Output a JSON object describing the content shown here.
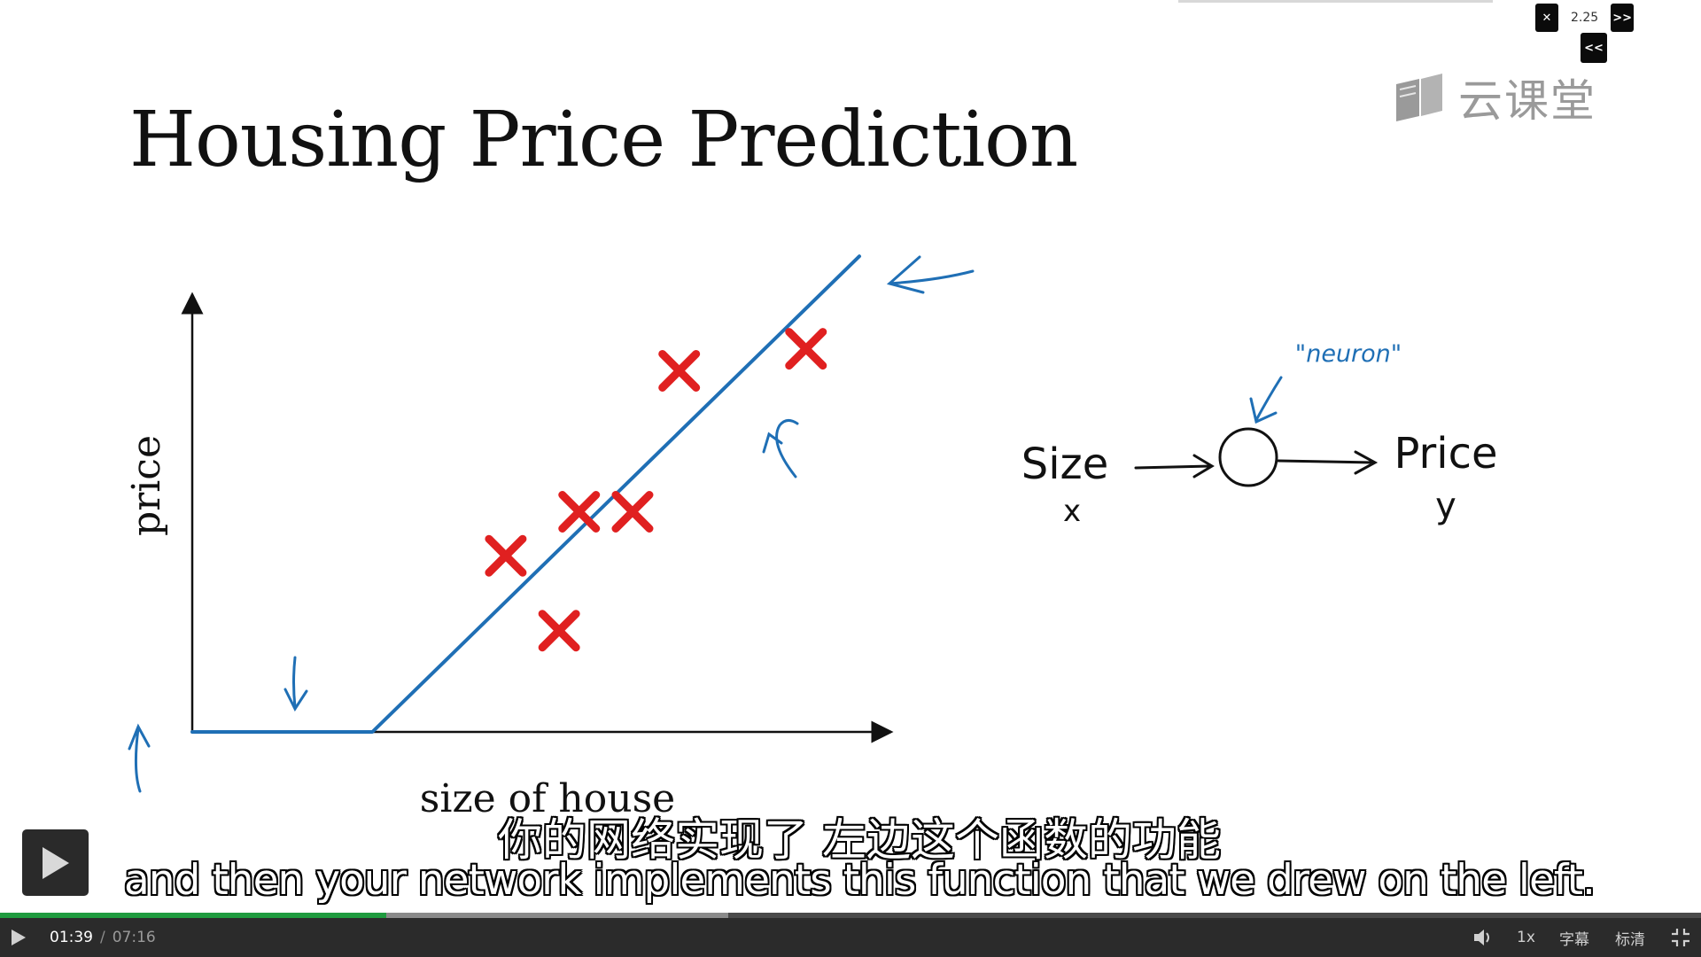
{
  "slide": {
    "title": "Housing Price Prediction"
  },
  "watermark": {
    "logo_icon": "book-logo-icon",
    "text": "云课堂"
  },
  "speed_control": {
    "close_label": "✕",
    "value": "2.25",
    "forward_label": ">>",
    "back_label": "<<"
  },
  "chart_data": {
    "type": "scatter",
    "title": "",
    "xlabel": "size of house",
    "ylabel": "price",
    "points": [
      {
        "x": 0.47,
        "y": 0.4
      },
      {
        "x": 0.55,
        "y": 0.23
      },
      {
        "x": 0.58,
        "y": 0.5
      },
      {
        "x": 0.66,
        "y": 0.5
      },
      {
        "x": 0.73,
        "y": 0.82
      },
      {
        "x": 0.92,
        "y": 0.87
      }
    ],
    "fit_line": [
      {
        "x": 0.0,
        "y": 0.0
      },
      {
        "x": 0.27,
        "y": 0.0
      },
      {
        "x": 1.0,
        "y": 1.08
      }
    ],
    "annotations": {
      "neuron": "\"neuron\"",
      "input": "Size",
      "input_var": "x",
      "output": "Price",
      "output_var": "y"
    },
    "colors": {
      "points": "#e02020",
      "line": "#1f6fb5"
    }
  },
  "subtitles": {
    "zh": "你的网络实现了 左边这个函数的功能",
    "en": "and then your network implements this function that we drew on the left."
  },
  "player": {
    "current_time": "01:39",
    "separator": "/",
    "total_time": "07:16",
    "progress_played": 0.227,
    "progress_buffered": 0.428,
    "volume_icon": "volume-icon",
    "speed_label": "1x",
    "captions_label": "字幕",
    "quality_label": "标清",
    "fullscreen_icon": "fullscreen-icon",
    "play_icon": "play-icon"
  }
}
